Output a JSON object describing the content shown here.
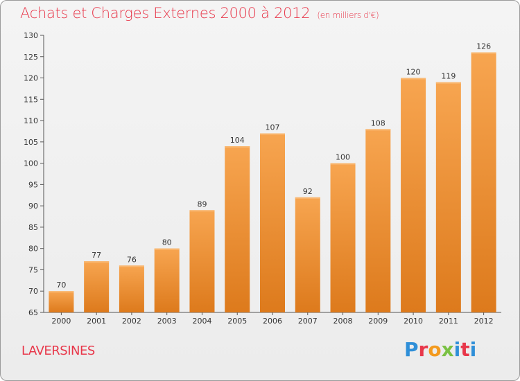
{
  "title": "Achats et Charges Externes 2000 à 2012",
  "unit": "(en milliers d'€)",
  "location": "LAVERSINES",
  "logo": {
    "text": "Proxiti",
    "colors": [
      "#2f8fd8",
      "#e8374a",
      "#f39a1e",
      "#7ac143",
      "#2f8fd8",
      "#e8374a",
      "#2f8fd8"
    ]
  },
  "colors": {
    "bar_top": "#f7a550",
    "bar_bottom": "#dd7a1c",
    "title": "#e8374a"
  },
  "chart_data": {
    "type": "bar",
    "title": "Achats et Charges Externes 2000 à 2012",
    "categories": [
      "2000",
      "2001",
      "2002",
      "2003",
      "2004",
      "2005",
      "2006",
      "2007",
      "2008",
      "2009",
      "2010",
      "2011",
      "2012"
    ],
    "values": [
      70,
      77,
      76,
      80,
      89,
      104,
      107,
      92,
      100,
      108,
      120,
      119,
      126
    ],
    "ylim": [
      65,
      130
    ],
    "yticks": [
      65,
      70,
      75,
      80,
      85,
      90,
      95,
      100,
      105,
      110,
      115,
      120,
      125,
      130
    ],
    "xlabel": "",
    "ylabel": "",
    "grid": false
  }
}
